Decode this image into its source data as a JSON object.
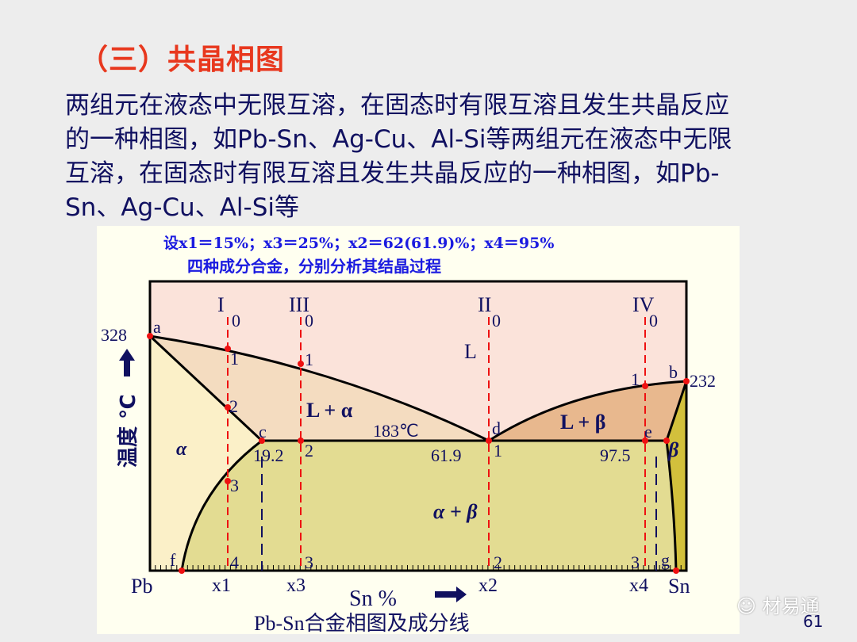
{
  "slide": {
    "title": "（三）共晶相图",
    "paragraph_lines": [
      "两组元在液态中无限互溶，在固态时有限互溶且发生共晶反应",
      "的一种相图，如Pb-Sn、Ag-Cu、Al-Si等两组元在液态中无限",
      "互溶，在固态时有限互溶且发生共晶反应的一种相图，如Pb-",
      "Sn、Ag-Cu、Al-Si等"
    ],
    "page_number": "61",
    "watermark": "材易通"
  },
  "diagram": {
    "header_line1": "设x1＝15%；x3＝25%；x2＝62(61.9)%；x4＝95%",
    "header_line2": "四种成分合金，分别分析其结晶过程",
    "caption": "Pb-Sn合金相图及成分线",
    "y_axis_label": "温度 ℃",
    "x_axis_label": "Sn %",
    "x_left": "Pb",
    "x_right": "Sn",
    "temp_left": "328",
    "temp_right": "232",
    "eutectic_temp": "183℃",
    "eutectic_compositions": [
      "19.2",
      "61.9",
      "97.5"
    ],
    "points": {
      "a": "a",
      "b": "b",
      "c": "c",
      "d": "d",
      "e": "e",
      "f": "f",
      "g": "g"
    },
    "regions": {
      "liquid": "L",
      "l_alpha": "L + α",
      "l_beta": "L + β",
      "alpha": "α",
      "beta": "β",
      "alpha_beta": "α + β"
    },
    "alloys": [
      {
        "roman": "I",
        "x_label": "x1",
        "sn_percent": 15,
        "steps": [
          "0",
          "1",
          "2",
          "3",
          "4"
        ]
      },
      {
        "roman": "III",
        "x_label": "x3",
        "sn_percent": 25,
        "steps": [
          "0",
          "1",
          "2",
          "3"
        ]
      },
      {
        "roman": "II",
        "x_label": "x2",
        "sn_percent": 62,
        "steps": [
          "0",
          "1",
          "2"
        ]
      },
      {
        "roman": "IV",
        "x_label": "x4",
        "sn_percent": 95,
        "steps": [
          "0",
          "1",
          "3"
        ]
      }
    ],
    "colors": {
      "liquid": "#fbe3da",
      "l_alpha": "#f4dcc0",
      "l_beta": "#e8b88e",
      "alpha": "#fbf0c8",
      "alpha_beta": "#e3dc92",
      "beta": "#d2c03c",
      "alloy_line": "#ee1111",
      "limit_line": "#101060"
    }
  }
}
